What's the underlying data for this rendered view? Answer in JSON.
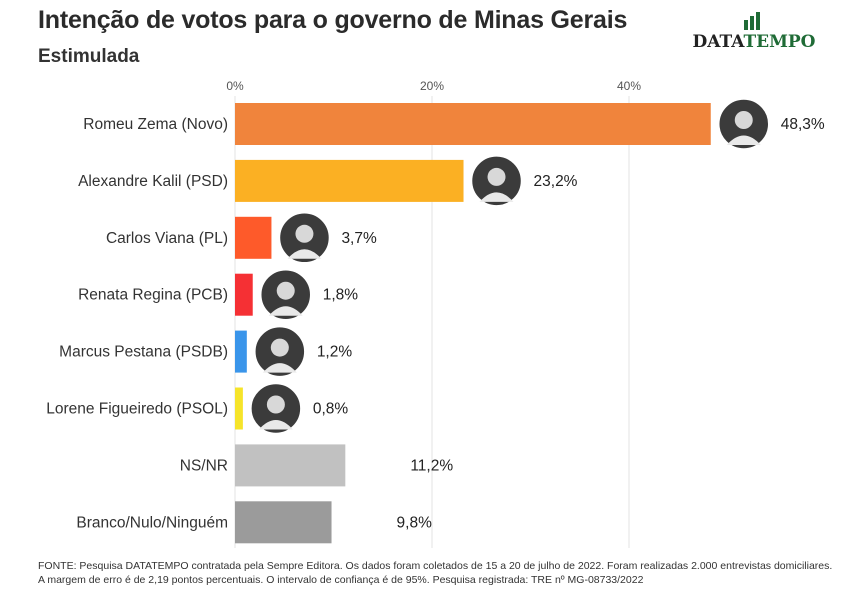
{
  "header": {
    "title": "Intenção de votos para o governo de Minas Gerais",
    "subtitle": "Estimulada"
  },
  "logo": {
    "part1": "DATA",
    "part2": "TEMPO",
    "color_brand": "#1f6b36"
  },
  "footer": {
    "line1": "FONTE: Pesquisa DATATEMPO contratada pela Sempre Editora. Os dados foram coletados de 15 a 20 de julho de 2022. Foram realizadas 2.000 entrevistas domiciliares.",
    "line2": "A margem de erro é de 2,19 pontos percentuais. O intervalo de confiança é de 95%. Pesquisa registrada: TRE nº MG-08733/2022"
  },
  "chart_data": {
    "type": "bar",
    "orientation": "horizontal",
    "categories": [
      "Romeu Zema (Novo)",
      "Alexandre Kalil (PSD)",
      "Carlos Viana (PL)",
      "Renata Regina (PCB)",
      "Marcus Pestana (PSDB)",
      "Lorene Figueiredo (PSOL)",
      "NS/NR",
      "Branco/Nulo/Ninguém"
    ],
    "values": [
      48.3,
      23.2,
      3.7,
      1.8,
      1.2,
      0.8,
      11.2,
      9.8
    ],
    "value_labels": [
      "48,3%",
      "23,2%",
      "3,7%",
      "1,8%",
      "1,2%",
      "0,8%",
      "11,2%",
      "9,8%"
    ],
    "colors": [
      "#f0843c",
      "#fbb023",
      "#fe5a2a",
      "#f53034",
      "#3a95ea",
      "#f6e42a",
      "#c1c1c1",
      "#9b9b9b"
    ],
    "has_photo": [
      true,
      true,
      true,
      true,
      true,
      true,
      false,
      false
    ],
    "xticks": [
      0,
      20,
      40
    ],
    "xtick_labels": [
      "0%",
      "20%",
      "40%"
    ],
    "xlim": [
      0,
      50
    ],
    "grid": true,
    "ticks_position": "top"
  }
}
